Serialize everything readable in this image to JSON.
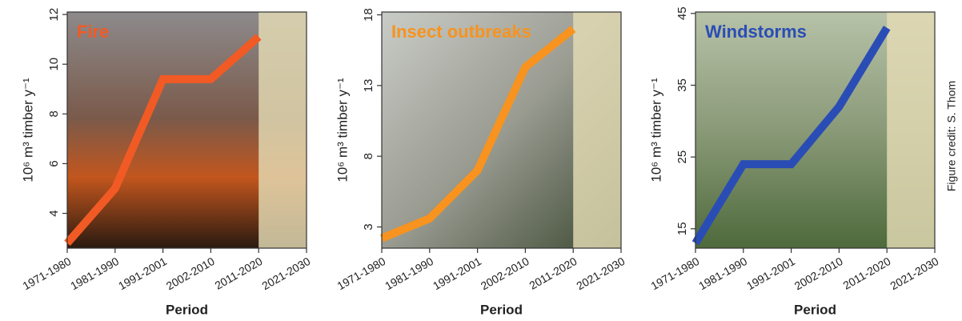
{
  "chart_data": [
    {
      "type": "line",
      "title": "Fire",
      "color": "#f15a24",
      "categories": [
        "1971-1980",
        "1981-1990",
        "1991-2001",
        "2002-2010",
        "2011-2020",
        "2021-2030"
      ],
      "values": [
        2.8,
        5.0,
        9.4,
        9.4,
        11.1,
        null
      ],
      "ylim": [
        2.6,
        12.1
      ],
      "yticks": [
        4,
        6,
        8,
        10,
        12
      ],
      "x_label": "Period",
      "y_label": "10⁶ m³ timber y⁻¹"
    },
    {
      "type": "line",
      "title": "Insect outbreaks",
      "color": "#f7931e",
      "categories": [
        "1971-1980",
        "1981-1990",
        "1991-2001",
        "2002-2010",
        "2011-2020",
        "2021-2030"
      ],
      "values": [
        2.2,
        3.6,
        7.0,
        14.3,
        17.0,
        null
      ],
      "ylim": [
        1.5,
        18.2
      ],
      "yticks": [
        3,
        8,
        13,
        18
      ],
      "x_label": "Period",
      "y_label": "10⁶ m³ timber y⁻¹"
    },
    {
      "type": "line",
      "title": "Windstorms",
      "color": "#2a4db5",
      "categories": [
        "1971-1980",
        "1981-1990",
        "1991-2001",
        "2002-2010",
        "2011-2020",
        "2021-2030"
      ],
      "values": [
        13.0,
        24.0,
        24.0,
        32.0,
        43.0,
        null
      ],
      "ylim": [
        12.3,
        45.2
      ],
      "yticks": [
        15,
        25,
        35,
        45
      ],
      "x_label": "Period",
      "y_label": "10⁶ m³ timber y⁻¹"
    }
  ],
  "credit": "Figure credit: S. Thom"
}
